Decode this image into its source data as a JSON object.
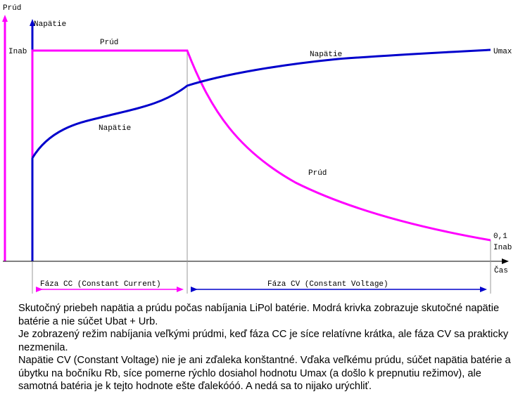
{
  "labels": {
    "current_axis": "Prúd",
    "voltage_axis": "Napätie",
    "inab": "Inab",
    "time_axis": "Čas",
    "current_cc": "Prúd",
    "voltage_cv": "Napätie",
    "umax": "Umax",
    "voltage_cc": "Napätie",
    "current_cv": "Prúd",
    "end_current_value": "0,1",
    "end_current_unit": "Inab",
    "phase_cc": "Fáza CC (Constant Current)",
    "phase_cv": "Fáza CV (Constant Voltage)"
  },
  "colors": {
    "current": "#ff00ff",
    "voltage": "#0000cc",
    "axis": "#000000",
    "divider": "#999999"
  },
  "caption": [
    "Skutočný priebeh napätia a prúdu počas nabíjania LiPol batérie. Modrá krivka zobrazuje skutočné napätie batérie a nie súčet Ubat + Urb.",
    "Je zobrazený režim nabíjania veľkými prúdmi, keď fáza CC je síce relatívne krátka, ale fáza CV sa prakticky nezmenila.",
    "Napätie CV (Constant Voltage) nie je ani zďaleka konštantné. Vďaka veľkému prúdu, súčet napätia batérie a úbytku na bočníku Rb, síce pomerne rýchlo dosiahol hodnotu Umax (a došlo k prepnutiu režimov), ale samotná batéria je k tejto hodnote ešte ďalekóóó. A nedá sa to nijako urýchliť."
  ]
}
